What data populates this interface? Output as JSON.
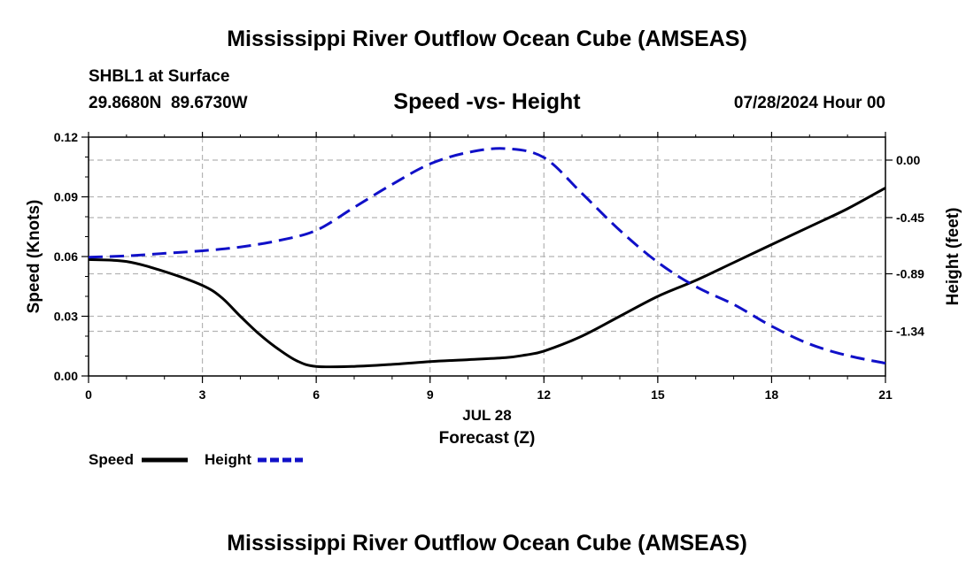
{
  "page": {
    "title_top": "Mississippi River Outflow Ocean Cube (AMSEAS)",
    "title_bottom": "Mississippi River Outflow Ocean Cube (AMSEAS)",
    "station": "SHBL1 at Surface",
    "coords": "29.8680N  89.6730W",
    "datetime": "07/28/2024 Hour 00"
  },
  "colors": {
    "speed": "#000000",
    "height": "#1010c8",
    "grid": "#b4b4b4"
  },
  "chart_data": {
    "type": "line",
    "title": "Speed -vs- Height",
    "xlabel": "Forecast (Z)",
    "xlabel_date": "JUL 28",
    "ylabel": "Speed (Knots)",
    "y2label": "Height (feet)",
    "xlim": [
      0,
      21
    ],
    "ylim": [
      0,
      0.12
    ],
    "y2lim": [
      -1.69,
      0.18
    ],
    "x_ticks": [
      0,
      3,
      6,
      9,
      12,
      15,
      18,
      21
    ],
    "x_tick_labels": [
      "0",
      "3",
      "6",
      "9",
      "12",
      "15",
      "18",
      "21"
    ],
    "y_ticks": [
      0,
      0.03,
      0.06,
      0.09,
      0.12
    ],
    "y_tick_labels": [
      "0.00",
      "0.03",
      "0.06",
      "0.09",
      "0.12"
    ],
    "y2_ticks": [
      0.0,
      -0.45,
      -0.89,
      -1.34
    ],
    "y2_tick_labels": [
      "0.00",
      "-0.45",
      "-0.89",
      "-1.34"
    ],
    "grid": true,
    "legend": [
      "Speed",
      "Height"
    ],
    "series": [
      {
        "name": "Speed",
        "axis": "left",
        "style": "solid",
        "color": "#000000",
        "x": [
          0,
          1,
          2,
          3,
          3.5,
          4,
          4.5,
          5,
          5.5,
          6,
          7,
          8,
          9,
          10,
          11,
          11.5,
          12,
          13,
          14,
          15,
          16,
          17,
          18,
          19,
          20,
          21
        ],
        "values": [
          0.0585,
          0.0575,
          0.0525,
          0.0455,
          0.0395,
          0.03,
          0.021,
          0.0135,
          0.0075,
          0.0048,
          0.0048,
          0.0058,
          0.0072,
          0.0082,
          0.0092,
          0.0105,
          0.0125,
          0.02,
          0.03,
          0.04,
          0.048,
          0.057,
          0.066,
          0.075,
          0.084,
          0.0945
        ]
      },
      {
        "name": "Height",
        "axis": "right",
        "style": "dashed",
        "color": "#1010c8",
        "x": [
          0,
          1,
          2,
          3,
          4,
          5,
          6,
          7,
          8,
          9,
          10,
          11,
          12,
          13,
          14,
          15,
          16,
          17,
          18,
          19,
          20,
          21
        ],
        "values": [
          -0.76,
          -0.75,
          -0.73,
          -0.71,
          -0.68,
          -0.63,
          -0.55,
          -0.37,
          -0.19,
          -0.03,
          0.06,
          0.09,
          0.02,
          -0.26,
          -0.55,
          -0.8,
          -0.99,
          -1.13,
          -1.3,
          -1.44,
          -1.53,
          -1.59
        ]
      }
    ]
  }
}
